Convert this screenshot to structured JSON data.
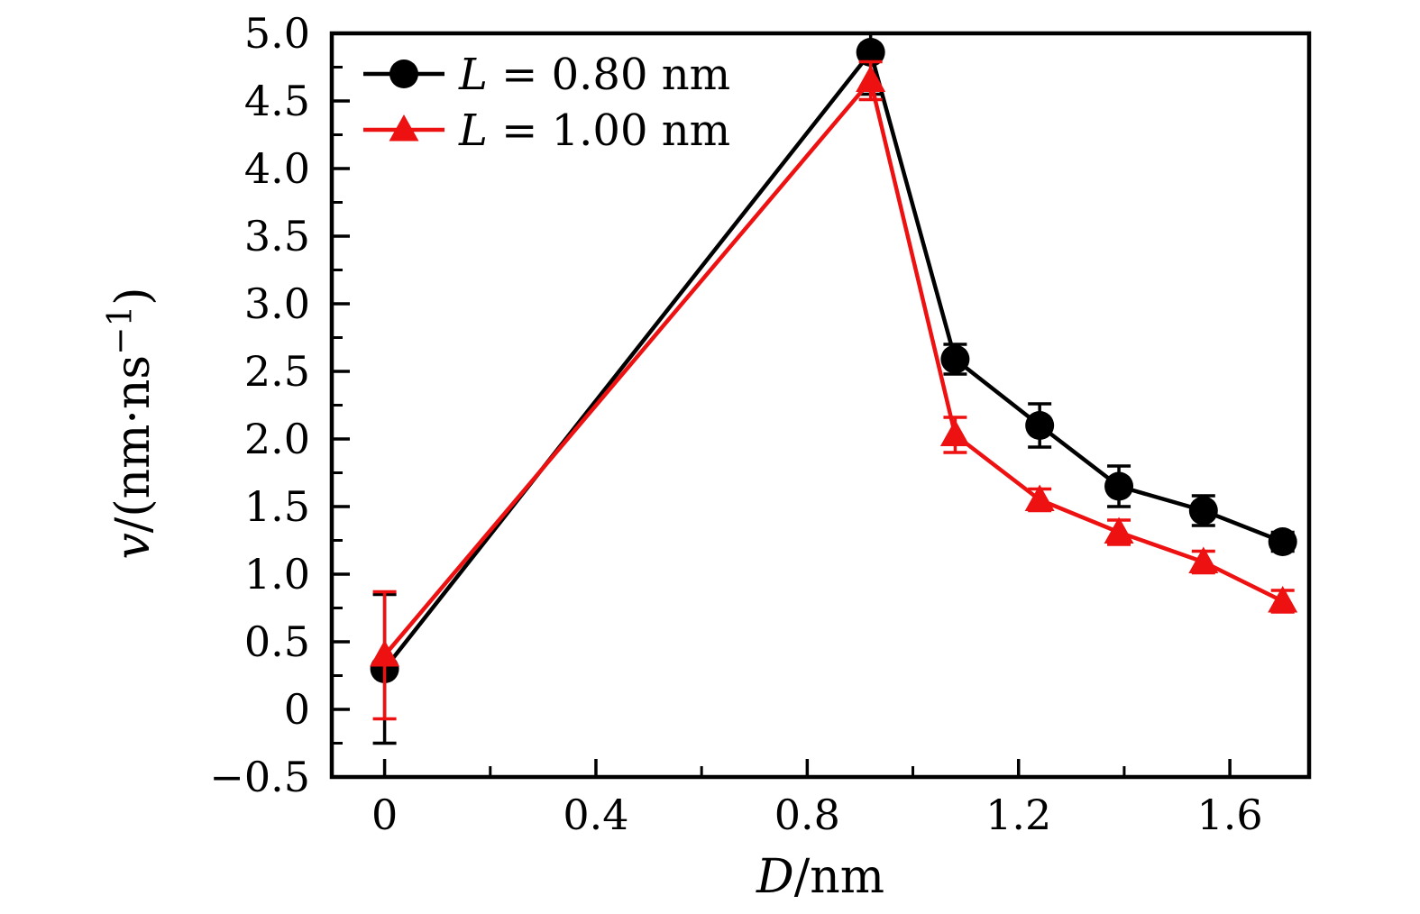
{
  "chart_data": {
    "type": "line",
    "title": "",
    "xlabel_segments": [
      {
        "t": "D",
        "italic": true
      },
      {
        "t": "/nm",
        "italic": false
      }
    ],
    "ylabel_segments": [
      {
        "t": "v",
        "italic": true
      },
      {
        "t": "/(nm·ns",
        "italic": false
      },
      {
        "t": "−1",
        "italic": false,
        "sup": true
      },
      {
        "t": ")",
        "italic": false
      }
    ],
    "xlim": [
      -0.1,
      1.75
    ],
    "ylim": [
      -0.5,
      5.0
    ],
    "x_major_ticks": [
      0,
      0.4,
      0.8,
      1.2,
      1.6
    ],
    "x_major_tick_labels": [
      "0",
      "0.4",
      "0.8",
      "1.2",
      "1.6"
    ],
    "x_minor_ticks": [
      0.2,
      0.6,
      1.0,
      1.4
    ],
    "y_major_ticks": [
      -0.5,
      0,
      0.5,
      1.0,
      1.5,
      2.0,
      2.5,
      3.0,
      3.5,
      4.0,
      4.5,
      5.0
    ],
    "y_major_tick_labels": [
      "−0.5",
      "0",
      "0.5",
      "1.0",
      "1.5",
      "2.0",
      "2.5",
      "3.0",
      "3.5",
      "4.0",
      "4.5",
      "5.0"
    ],
    "y_minor_ticks": [
      -0.25,
      0.25,
      0.75,
      1.25,
      1.75,
      2.25,
      2.75,
      3.25,
      3.75,
      4.25,
      4.75
    ],
    "grid": false,
    "legend_position": "upper-left",
    "x": [
      0,
      0.92,
      1.08,
      1.24,
      1.39,
      1.55,
      1.7
    ],
    "series": [
      {
        "name": "L = 0.80 nm",
        "label_segments": [
          {
            "t": "L",
            "italic": true
          },
          {
            "t": " = 0.80 nm",
            "italic": false
          }
        ],
        "color": "#000000",
        "marker": "circle",
        "values": [
          0.3,
          4.86,
          2.59,
          2.1,
          1.65,
          1.47,
          1.24
        ],
        "errors": [
          0.55,
          0.31,
          0.11,
          0.16,
          0.15,
          0.11,
          0.07
        ]
      },
      {
        "name": "L = 1.00 nm",
        "label_segments": [
          {
            "t": "L",
            "italic": true
          },
          {
            "t": " = 1.00 nm",
            "italic": false
          }
        ],
        "color": "#ee1111",
        "marker": "triangle",
        "values": [
          0.4,
          4.65,
          2.03,
          1.55,
          1.31,
          1.09,
          0.8
        ],
        "errors": [
          0.47,
          0.14,
          0.13,
          0.08,
          0.09,
          0.08,
          0.08
        ]
      }
    ]
  },
  "colors": {
    "background": "#ffffff",
    "axis": "#000000",
    "series_black": "#000000",
    "series_red": "#ee1111"
  }
}
